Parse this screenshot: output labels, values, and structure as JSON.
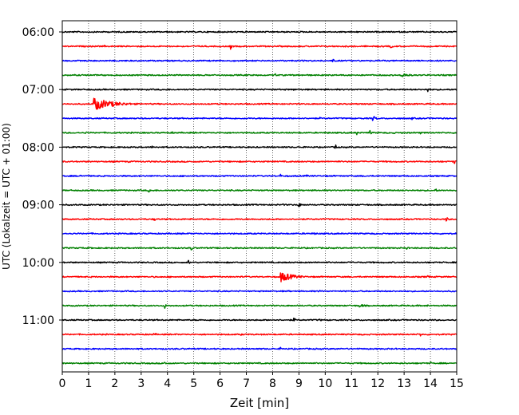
{
  "chart_data": {
    "type": "line",
    "title": "",
    "xlabel": "Zeit  [min]",
    "ylabel": "UTC (Lokalzeit = UTC + 01:00)",
    "xlim": [
      0,
      15
    ],
    "x_ticks": [
      0,
      1,
      2,
      3,
      4,
      5,
      6,
      7,
      8,
      9,
      10,
      11,
      12,
      13,
      14,
      15
    ],
    "y_tick_labels": [
      "06:00",
      "07:00",
      "08:00",
      "09:00",
      "10:00",
      "11:00"
    ],
    "grid": "vertical dotted",
    "legend": "none",
    "trace_colors": [
      "#000000",
      "#ff0000",
      "#0000ff",
      "#008000"
    ],
    "series": [
      {
        "start": "06:00",
        "color": "#000000",
        "events": [
          {
            "t": 3.9,
            "a": 0.25
          },
          {
            "t": 13.3,
            "a": 0.2
          }
        ]
      },
      {
        "start": "06:15",
        "color": "#ff0000",
        "events": [
          {
            "t": 6.4,
            "a": 0.9
          },
          {
            "t": 12.5,
            "a": 0.7
          },
          {
            "t": 1.6,
            "a": 0.3
          }
        ]
      },
      {
        "start": "06:30",
        "color": "#0000ff",
        "events": [
          {
            "t": 10.3,
            "a": 0.9
          }
        ]
      },
      {
        "start": "06:45",
        "color": "#008000",
        "events": [
          {
            "t": 8.1,
            "a": 0.5
          },
          {
            "t": 12.9,
            "a": 0.8,
            "dur": 0.8
          }
        ]
      },
      {
        "start": "07:00",
        "color": "#000000",
        "events": [
          {
            "t": 13.9,
            "a": 0.9
          },
          {
            "t": 8.8,
            "a": 0.3
          }
        ]
      },
      {
        "start": "07:15",
        "color": "#ff0000",
        "events": [
          {
            "t": 1.2,
            "a": 1.8,
            "dur": 2.2
          }
        ]
      },
      {
        "start": "07:30",
        "color": "#0000ff",
        "events": [
          {
            "t": 11.8,
            "a": 0.7,
            "dur": 0.5
          },
          {
            "t": 13.3,
            "a": 0.4
          },
          {
            "t": 9.8,
            "a": 0.3
          }
        ]
      },
      {
        "start": "07:45",
        "color": "#008000",
        "events": [
          {
            "t": 10.1,
            "a": 0.5
          },
          {
            "t": 11.2,
            "a": 0.6
          },
          {
            "t": 11.7,
            "a": 0.7
          },
          {
            "t": 12.6,
            "a": 0.5
          },
          {
            "t": 13.6,
            "a": 0.5
          },
          {
            "t": 4.2,
            "a": 0.5
          },
          {
            "t": 0.9,
            "a": 0.5
          }
        ]
      },
      {
        "start": "08:00",
        "color": "#000000",
        "events": [
          {
            "t": 10.4,
            "a": 0.9
          },
          {
            "t": 3.4,
            "a": 0.5
          },
          {
            "t": 2.5,
            "a": 0.4
          }
        ]
      },
      {
        "start": "08:15",
        "color": "#ff0000",
        "events": [
          {
            "t": 14.9,
            "a": 0.9
          },
          {
            "t": 2.5,
            "a": 0.4
          },
          {
            "t": 10.5,
            "a": 0.3
          }
        ]
      },
      {
        "start": "08:30",
        "color": "#0000ff",
        "events": [
          {
            "t": 0.7,
            "a": 0.6
          },
          {
            "t": 8.3,
            "a": 0.5
          },
          {
            "t": 9.3,
            "a": 0.5
          }
        ]
      },
      {
        "start": "08:45",
        "color": "#008000",
        "events": [
          {
            "t": 3.3,
            "a": 0.9
          },
          {
            "t": 14.2,
            "a": 0.7
          }
        ]
      },
      {
        "start": "09:00",
        "color": "#000000",
        "events": [
          {
            "t": 9.0,
            "a": 1.0
          },
          {
            "t": 8.4,
            "a": 0.4
          }
        ]
      },
      {
        "start": "09:15",
        "color": "#ff0000",
        "events": [
          {
            "t": 14.6,
            "a": 1.0
          },
          {
            "t": 3.5,
            "a": 0.6
          }
        ]
      },
      {
        "start": "09:30",
        "color": "#0000ff",
        "events": [
          {
            "t": 9.6,
            "a": 0.6
          },
          {
            "t": 9.3,
            "a": 0.4
          }
        ]
      },
      {
        "start": "09:45",
        "color": "#008000",
        "events": [
          {
            "t": 4.9,
            "a": 0.8
          },
          {
            "t": 13.1,
            "a": 0.6
          },
          {
            "t": 11.9,
            "a": 0.3
          }
        ]
      },
      {
        "start": "10:00",
        "color": "#000000",
        "events": [
          {
            "t": 4.8,
            "a": 0.8
          },
          {
            "t": 9.7,
            "a": 0.3
          }
        ]
      },
      {
        "start": "10:15",
        "color": "#ff0000",
        "events": [
          {
            "t": 8.3,
            "a": 1.5,
            "dur": 1.4
          },
          {
            "t": 13.9,
            "a": 0.8
          },
          {
            "t": 3.3,
            "a": 0.3
          }
        ]
      },
      {
        "start": "10:30",
        "color": "#0000ff",
        "events": [
          {
            "t": 9.8,
            "a": 0.6
          },
          {
            "t": 8.6,
            "a": 0.4
          }
        ]
      },
      {
        "start": "10:45",
        "color": "#008000",
        "events": [
          {
            "t": 3.9,
            "a": 0.8
          },
          {
            "t": 11.3,
            "a": 0.5,
            "dur": 0.7
          },
          {
            "t": 13.9,
            "a": 0.5
          },
          {
            "t": 9.0,
            "a": 0.4
          }
        ]
      },
      {
        "start": "11:00",
        "color": "#000000",
        "events": [
          {
            "t": 8.8,
            "a": 0.9
          },
          {
            "t": 9.8,
            "a": 0.5
          }
        ]
      },
      {
        "start": "11:15",
        "color": "#ff0000",
        "events": [
          {
            "t": 3.5,
            "a": 0.6
          },
          {
            "t": 13.6,
            "a": 0.8
          },
          {
            "t": 6.8,
            "a": 0.3
          }
        ]
      },
      {
        "start": "11:30",
        "color": "#0000ff",
        "events": [
          {
            "t": 8.3,
            "a": 0.5
          },
          {
            "t": 10.4,
            "a": 0.3
          }
        ]
      },
      {
        "start": "11:45",
        "color": "#008000",
        "events": [
          {
            "t": 3.9,
            "a": 0.8
          },
          {
            "t": 14.0,
            "a": 0.5
          }
        ]
      }
    ]
  }
}
